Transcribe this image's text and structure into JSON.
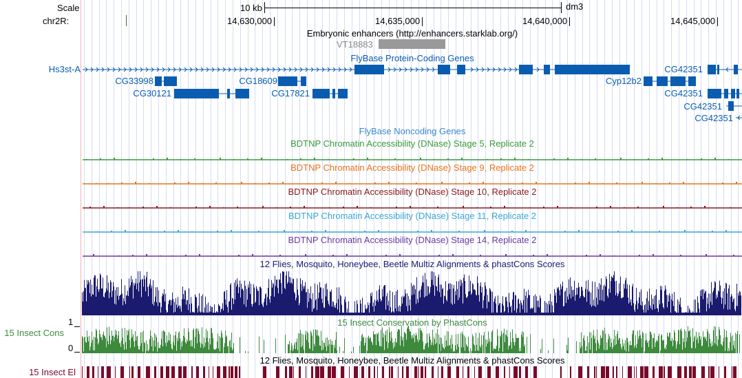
{
  "ruler": {
    "scale_label": "Scale",
    "scale_value": "10 kb",
    "assembly": "dm3",
    "chrom_label": "chr2R:",
    "positions": [
      "14,630,000",
      "14,635,000",
      "14,640,000",
      "14,645,000"
    ]
  },
  "enhancers": {
    "title": "Embryonic enhancers (http://enhancers.starklab.org/)",
    "item": "VT18883"
  },
  "protein_coding": {
    "title": "FlyBase Protein-Coding Genes",
    "genes": [
      "Hs3st-A",
      "CG33998",
      "CG30121",
      "CG18609",
      "CG17821",
      "Cyp12b2",
      "CG42351",
      "CG42351",
      "CG42351",
      "CG42351"
    ]
  },
  "noncoding": {
    "title": "FlyBase Noncoding Genes"
  },
  "dnase": [
    {
      "title": "BDTNP Chromatin Accessibility (DNase) Stage 5, Replicate 2",
      "color": "#3a9a3a"
    },
    {
      "title": "BDTNP Chromatin Accessibility (DNase) Stage 9, Replicate 2",
      "color": "#e8731a"
    },
    {
      "title": "BDTNP Chromatin Accessibility (DNase) Stage 10, Replicate 2",
      "color": "#8b1a1a"
    },
    {
      "title": "BDTNP Chromatin Accessibility (DNase) Stage 11, Replicate 2",
      "color": "#3aa6d6"
    },
    {
      "title": "BDTNP Chromatin Accessibility (DNase) Stage 14, Replicate 2",
      "color": "#6a3aa0"
    }
  ],
  "multiz": {
    "title": "12 Flies, Mosquito, Honeybee, Beetle Multiz Alignments & phastCons Scores",
    "color": "#1a1a6e"
  },
  "phastcons": {
    "title": "15 Insect Conservation by PhastCons",
    "side_label": "15 Insect Cons",
    "y_max": "1",
    "y_min": "0",
    "color": "#3d8a3d"
  },
  "elements": {
    "title": "12 Flies, Mosquito, Honeybee, Beetle Multiz Alignments & phastCons Scores",
    "side_label": "15 Insect El",
    "color": "#7a0a2a"
  },
  "colors": {
    "gene": "#0a5cb0",
    "enhancer_box": "#999999",
    "grid": "#d4dcf4"
  }
}
